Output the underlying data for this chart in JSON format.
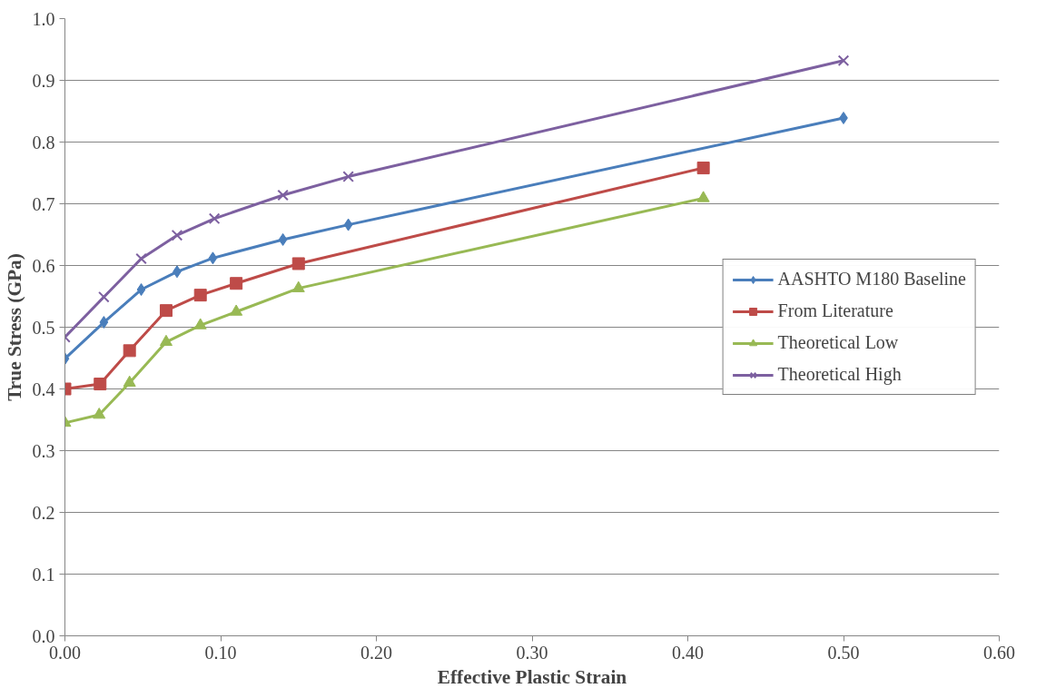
{
  "chart_data": {
    "type": "line",
    "xlabel": "Effective Plastic Strain",
    "ylabel": "True Stress (GPa)",
    "xlim": [
      0,
      0.6
    ],
    "ylim": [
      0,
      1.0
    ],
    "xticks": [
      {
        "value": 0,
        "label": "0.00"
      },
      {
        "value": 0.1,
        "label": "0.10"
      },
      {
        "value": 0.2,
        "label": "0.20"
      },
      {
        "value": 0.3,
        "label": "0.30"
      },
      {
        "value": 0.4,
        "label": "0.40"
      },
      {
        "value": 0.5,
        "label": "0.50"
      },
      {
        "value": 0.6,
        "label": "0.60"
      }
    ],
    "yticks": [
      {
        "value": 0,
        "label": "0.0"
      },
      {
        "value": 0.1,
        "label": "0.1"
      },
      {
        "value": 0.2,
        "label": "0.2"
      },
      {
        "value": 0.3,
        "label": "0.3"
      },
      {
        "value": 0.4,
        "label": "0.4"
      },
      {
        "value": 0.5,
        "label": "0.5"
      },
      {
        "value": 0.6,
        "label": "0.6"
      },
      {
        "value": 0.7,
        "label": "0.7"
      },
      {
        "value": 0.8,
        "label": "0.8"
      },
      {
        "value": 0.9,
        "label": "0.9"
      },
      {
        "value": 1.0,
        "label": "1.0"
      }
    ],
    "grid": "y",
    "legend": "right",
    "line_style": "solid",
    "series": [
      {
        "name": "AASHTO M180 Baseline",
        "color": "#4a7ebb",
        "marker": "diamond",
        "x": [
          0,
          0.025,
          0.049,
          0.072,
          0.095,
          0.14,
          0.182,
          0.5
        ],
        "values": [
          0.449,
          0.508,
          0.561,
          0.59,
          0.612,
          0.642,
          0.666,
          0.839
        ]
      },
      {
        "name": "From Literature",
        "color": "#be4b48",
        "marker": "square",
        "x": [
          0,
          0.0226,
          0.0415,
          0.065,
          0.087,
          0.11,
          0.15,
          0.41
        ],
        "values": [
          0.4,
          0.408,
          0.462,
          0.527,
          0.552,
          0.571,
          0.603,
          0.758
        ]
      },
      {
        "name": "Theoretical Low",
        "color": "#98b954",
        "marker": "triangle",
        "x": [
          0,
          0.022,
          0.0415,
          0.065,
          0.087,
          0.11,
          0.15,
          0.41
        ],
        "values": [
          0.345,
          0.358,
          0.41,
          0.476,
          0.503,
          0.525,
          0.563,
          0.709
        ]
      },
      {
        "name": "Theoretical High",
        "color": "#7d60a0",
        "marker": "cross",
        "x": [
          0,
          0.025,
          0.049,
          0.072,
          0.096,
          0.14,
          0.182,
          0.5
        ],
        "values": [
          0.484,
          0.549,
          0.611,
          0.649,
          0.676,
          0.714,
          0.744,
          0.932
        ]
      }
    ]
  }
}
